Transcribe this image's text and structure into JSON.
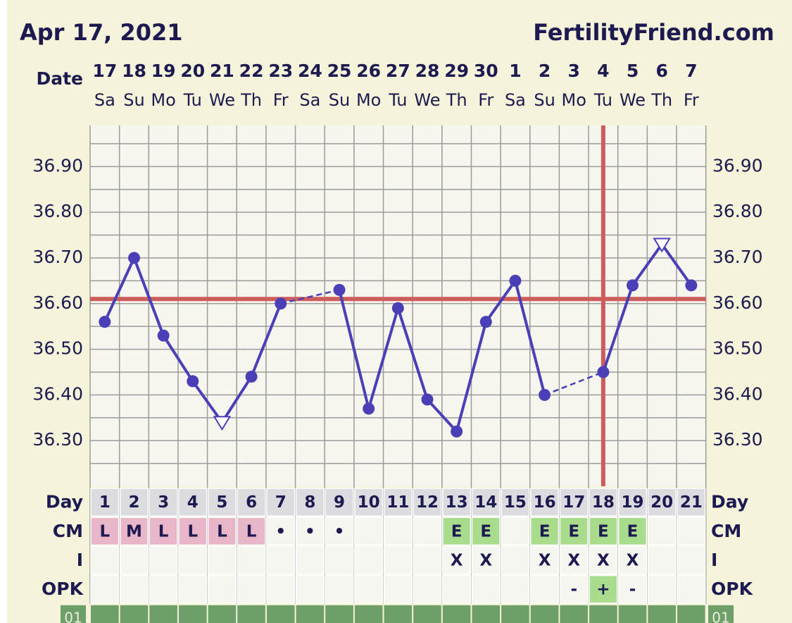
{
  "header": {
    "date": "Apr 17, 2021",
    "site": "FertilityFriend.com"
  },
  "chart_data": {
    "type": "line",
    "date_label": "Date",
    "categories": [
      "17",
      "18",
      "19",
      "20",
      "21",
      "22",
      "23",
      "24",
      "25",
      "26",
      "27",
      "28",
      "29",
      "30",
      "1",
      "2",
      "3",
      "4",
      "5",
      "6",
      "7"
    ],
    "weekdays": [
      "Sa",
      "Su",
      "Mo",
      "Tu",
      "We",
      "Th",
      "Fr",
      "Sa",
      "Su",
      "Mo",
      "Tu",
      "We",
      "Th",
      "Fr",
      "Sa",
      "Su",
      "Mo",
      "Tu",
      "We",
      "Th",
      "Fr"
    ],
    "values": [
      36.56,
      36.7,
      36.53,
      36.43,
      36.34,
      36.44,
      36.6,
      null,
      36.63,
      36.37,
      36.59,
      36.39,
      36.32,
      36.56,
      36.65,
      36.4,
      null,
      36.45,
      36.64,
      36.73,
      36.64
    ],
    "markers": [
      "circle",
      "circle",
      "circle",
      "circle",
      "triangle",
      "circle",
      "circle",
      null,
      "circle",
      "circle",
      "circle",
      "circle",
      "circle",
      "circle",
      "circle",
      "circle",
      null,
      "circle",
      "circle",
      "triangle",
      "circle"
    ],
    "color": "#4b3fb8",
    "ylim": [
      36.2,
      36.99
    ],
    "yticks": [
      {
        "value": 36.3,
        "label": "36.30"
      },
      {
        "value": 36.4,
        "label": "36.40"
      },
      {
        "value": 36.5,
        "label": "36.50"
      },
      {
        "value": 36.6,
        "label": "36.60"
      },
      {
        "value": 36.7,
        "label": "36.70"
      },
      {
        "value": 36.8,
        "label": "36.80"
      },
      {
        "value": 36.9,
        "label": "36.90"
      }
    ],
    "minor_yticks": [
      36.25,
      36.35,
      36.45,
      36.55,
      36.65,
      36.75,
      36.85,
      36.95
    ],
    "grid": true,
    "coverline": 36.61,
    "coverline_color": "#cd5c5c",
    "ovulation_day": 18
  },
  "table": {
    "cell_fill": "#f6f6f0",
    "rows": [
      {
        "label": "Day",
        "values": [
          1,
          2,
          3,
          4,
          5,
          6,
          7,
          8,
          9,
          10,
          11,
          12,
          13,
          14,
          15,
          16,
          17,
          18,
          19,
          20,
          21
        ],
        "fill": "#dcdce0"
      },
      {
        "label": "CM",
        "values": [
          "L",
          "M",
          "L",
          "L",
          "L",
          "L",
          "•",
          "•",
          "•",
          null,
          null,
          null,
          "E",
          "E",
          null,
          "E",
          "E",
          "E",
          "E",
          null,
          null
        ],
        "colors": [
          "#e8b6c8",
          "#e8b6c8",
          "#e8b6c8",
          "#e8b6c8",
          "#e8b6c8",
          "#e8b6c8",
          null,
          null,
          null,
          null,
          null,
          null,
          "#a9dc8c",
          "#a9dc8c",
          null,
          "#a9dc8c",
          "#a9dc8c",
          "#a9dc8c",
          "#a9dc8c",
          null,
          null
        ]
      },
      {
        "label": "I",
        "values": [
          null,
          null,
          null,
          null,
          null,
          null,
          null,
          null,
          null,
          null,
          null,
          null,
          "X",
          "X",
          null,
          "X",
          "X",
          "X",
          "X",
          null,
          null
        ]
      },
      {
        "label": "OPK",
        "values": [
          null,
          null,
          null,
          null,
          null,
          null,
          null,
          null,
          null,
          null,
          null,
          null,
          null,
          null,
          null,
          null,
          "-",
          "+",
          "-",
          null,
          null
        ],
        "colors": [
          null,
          null,
          null,
          null,
          null,
          null,
          null,
          null,
          null,
          null,
          null,
          null,
          null,
          null,
          null,
          null,
          null,
          "#a9dc8c",
          null,
          null,
          null
        ]
      }
    ],
    "bottom_label": "01",
    "bottom_fill": "#6f9f68"
  }
}
